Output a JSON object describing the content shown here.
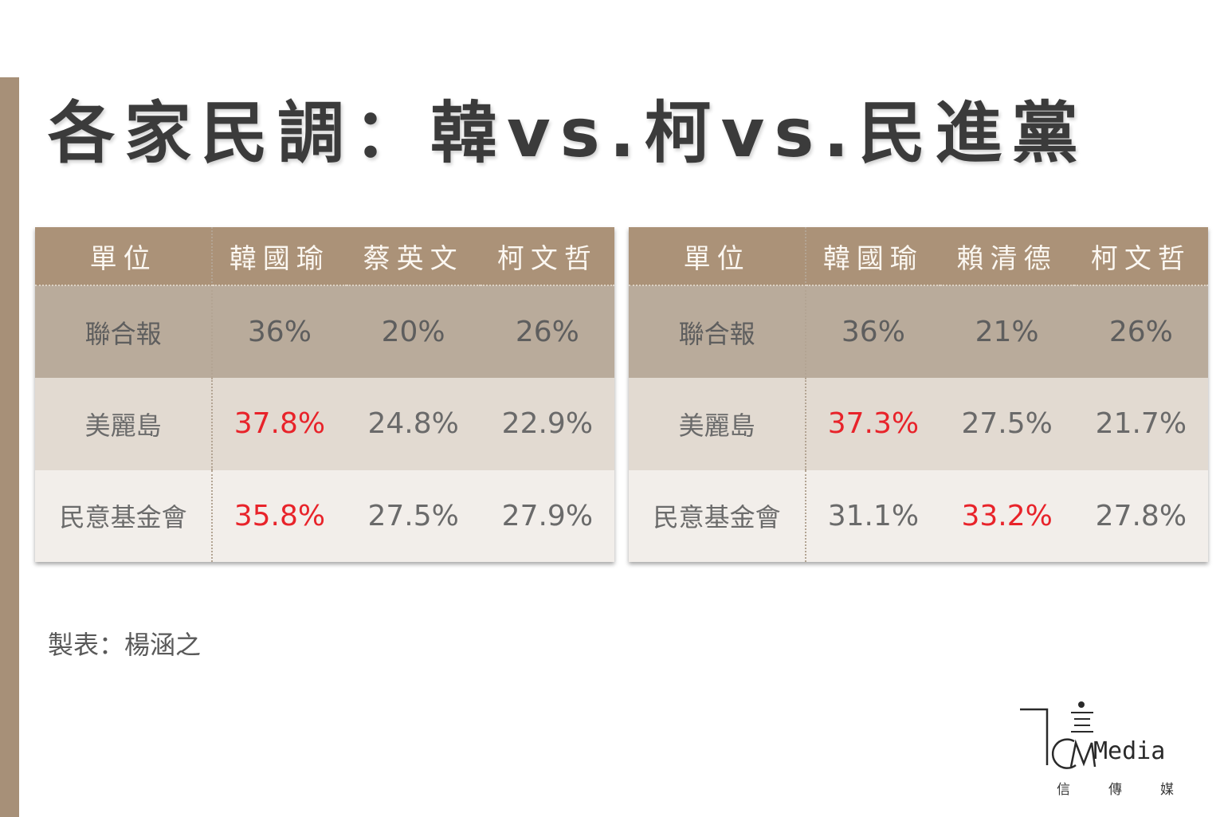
{
  "title": "各家民調：韓vs.柯vs.民進黨",
  "tables": [
    {
      "headers": [
        "單位",
        "韓國瑜",
        "蔡英文",
        "柯文哲"
      ],
      "rows": [
        {
          "unit": "聯合報",
          "values": [
            "36%",
            "20%",
            "26%"
          ],
          "highlight": [
            true,
            false,
            false
          ]
        },
        {
          "unit": "美麗島",
          "values": [
            "37.8%",
            "24.8%",
            "22.9%"
          ],
          "highlight": [
            true,
            false,
            false
          ]
        },
        {
          "unit": "民意基金會",
          "values": [
            "35.8%",
            "27.5%",
            "27.9%"
          ],
          "highlight": [
            true,
            false,
            false
          ]
        }
      ]
    },
    {
      "headers": [
        "單位",
        "韓國瑜",
        "賴清德",
        "柯文哲"
      ],
      "rows": [
        {
          "unit": "聯合報",
          "values": [
            "36%",
            "21%",
            "26%"
          ],
          "highlight": [
            true,
            false,
            false
          ]
        },
        {
          "unit": "美麗島",
          "values": [
            "37.3%",
            "27.5%",
            "21.7%"
          ],
          "highlight": [
            true,
            false,
            false
          ]
        },
        {
          "unit": "民意基金會",
          "values": [
            "31.1%",
            "33.2%",
            "27.8%"
          ],
          "highlight": [
            false,
            true,
            false
          ]
        }
      ]
    }
  ],
  "credit": "製表：楊涵之",
  "logo": {
    "name": "Media",
    "subtitle": "信傳媒"
  },
  "colors": {
    "accent_bar": "#a79078",
    "header_bg": "#ab9278",
    "highlight_text": "#e8232a"
  }
}
